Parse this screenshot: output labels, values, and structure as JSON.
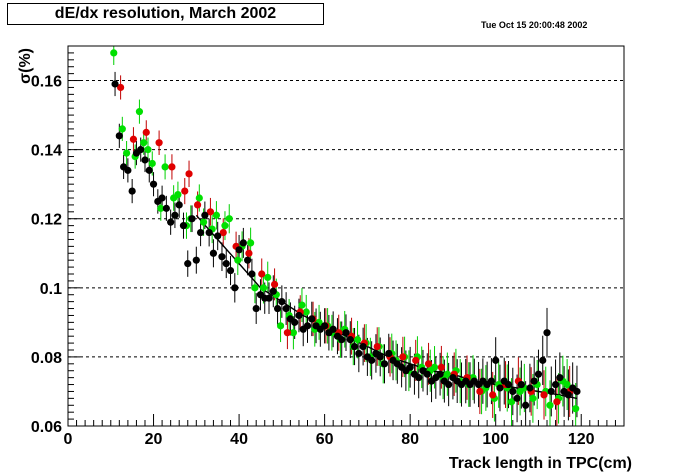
{
  "header": {
    "title": "dE/dx resolution, March 2002",
    "datestamp": "Tue Oct 15 20:00:48 2002"
  },
  "chart_data": {
    "type": "scatter",
    "title": "dE/dx resolution, March 2002",
    "xlabel": "Track length in TPC(cm)",
    "ylabel": "σ(%)",
    "xlim": [
      0,
      130
    ],
    "ylim": [
      0.06,
      0.17
    ],
    "xticks": [
      0,
      20,
      40,
      60,
      80,
      100,
      120
    ],
    "yticks": [
      0.06,
      0.08,
      0.1,
      0.12,
      0.14,
      0.16
    ],
    "ytick_labels": [
      "0.06",
      "0.08",
      "0.1",
      "0.12",
      "0.14",
      "0.16"
    ],
    "grid": "horizontal-dashed",
    "colors": {
      "black": "#000000",
      "red": "#e00000",
      "green": "#00e000",
      "error_red": "#c00000",
      "error_green": "#00d000"
    },
    "series": [
      {
        "color": "black",
        "x": [
          11,
          12,
          13,
          14,
          15,
          16,
          17,
          18,
          19,
          20,
          21,
          22,
          23,
          24,
          25,
          26,
          27,
          28,
          29,
          30,
          31,
          32,
          33,
          34,
          35,
          36,
          37,
          38,
          39,
          40,
          41,
          42,
          43,
          44,
          45,
          46,
          47,
          48,
          49,
          50,
          51,
          52,
          53,
          54,
          55,
          56,
          57,
          58,
          59,
          60,
          61,
          62,
          63,
          64,
          65,
          66,
          67,
          68,
          69,
          70,
          71,
          72,
          73,
          74,
          75,
          76,
          77,
          78,
          79,
          80,
          81,
          82,
          83,
          84,
          85,
          86,
          87,
          88,
          89,
          90,
          91,
          92,
          93,
          94,
          95,
          96,
          97,
          98,
          99,
          100,
          101,
          102,
          103,
          104,
          105,
          106,
          107,
          108,
          109,
          110,
          111,
          112,
          113,
          114,
          115,
          116,
          117,
          118,
          119
        ],
        "y": [
          0.159,
          0.144,
          0.135,
          0.134,
          0.128,
          0.139,
          0.14,
          0.137,
          0.134,
          0.13,
          0.125,
          0.126,
          0.123,
          0.119,
          0.121,
          0.124,
          0.118,
          0.107,
          0.12,
          0.108,
          0.116,
          0.121,
          0.116,
          0.11,
          0.115,
          0.109,
          0.107,
          0.105,
          0.1,
          0.111,
          0.113,
          0.108,
          0.104,
          0.094,
          0.098,
          0.097,
          0.097,
          0.099,
          0.094,
          0.096,
          0.094,
          0.091,
          0.09,
          0.092,
          0.088,
          0.089,
          0.091,
          0.089,
          0.088,
          0.089,
          0.087,
          0.088,
          0.086,
          0.085,
          0.087,
          0.085,
          0.083,
          0.081,
          0.083,
          0.08,
          0.079,
          0.081,
          0.08,
          0.078,
          0.081,
          0.079,
          0.078,
          0.077,
          0.076,
          0.077,
          0.075,
          0.074,
          0.076,
          0.075,
          0.073,
          0.074,
          0.075,
          0.073,
          0.072,
          0.074,
          0.073,
          0.072,
          0.073,
          0.072,
          0.073,
          0.072,
          0.073,
          0.072,
          0.073,
          0.079,
          0.071,
          0.073,
          0.072,
          0.07,
          0.068,
          0.072,
          0.066,
          0.071,
          0.073,
          0.075,
          0.079,
          0.087,
          0.07,
          0.072,
          0.074,
          0.07,
          0.069,
          0.071,
          0.07
        ]
      },
      {
        "color": "red",
        "x": [
          12,
          15,
          18,
          21,
          24,
          27,
          28,
          30,
          33,
          36,
          39,
          42,
          45,
          48,
          51,
          54,
          57,
          60,
          63,
          66,
          69,
          72,
          75,
          78,
          81,
          84,
          87,
          90,
          93,
          96,
          99,
          102,
          105,
          108,
          111,
          114,
          117
        ],
        "y": [
          0.158,
          0.143,
          0.145,
          0.142,
          0.135,
          0.128,
          0.133,
          0.124,
          0.122,
          0.116,
          0.112,
          0.11,
          0.104,
          0.101,
          0.087,
          0.093,
          0.091,
          0.089,
          0.087,
          0.086,
          0.084,
          0.083,
          0.08,
          0.08,
          0.079,
          0.078,
          0.077,
          0.075,
          0.074,
          0.07,
          0.069,
          0.072,
          0.073,
          0.07,
          0.069,
          0.067,
          0.07
        ]
      },
      {
        "color": "green",
        "x": [
          11,
          13,
          14,
          16,
          17,
          18,
          19,
          20,
          22,
          23,
          25,
          26,
          28,
          29,
          31,
          32,
          34,
          35,
          37,
          38,
          40,
          41,
          43,
          44,
          46,
          47,
          49,
          50,
          52,
          53,
          55,
          56,
          58,
          59,
          61,
          62,
          64,
          65,
          67,
          68,
          70,
          71,
          73,
          74,
          76,
          77,
          79,
          80,
          82,
          83,
          85,
          86,
          88,
          89,
          91,
          92,
          94,
          95,
          97,
          98,
          100,
          101,
          103,
          104,
          106,
          107,
          109,
          110,
          112,
          113,
          115,
          116,
          117,
          119
        ],
        "y": [
          0.168,
          0.146,
          0.139,
          0.138,
          0.151,
          0.142,
          0.14,
          0.136,
          0.123,
          0.135,
          0.126,
          0.127,
          0.118,
          0.12,
          0.126,
          0.119,
          0.117,
          0.121,
          0.118,
          0.12,
          0.108,
          0.112,
          0.113,
          0.1,
          0.1,
          0.103,
          0.098,
          0.089,
          0.092,
          0.087,
          0.095,
          0.093,
          0.088,
          0.09,
          0.089,
          0.087,
          0.085,
          0.088,
          0.083,
          0.085,
          0.084,
          0.08,
          0.083,
          0.078,
          0.081,
          0.079,
          0.08,
          0.076,
          0.08,
          0.077,
          0.076,
          0.077,
          0.074,
          0.075,
          0.076,
          0.073,
          0.072,
          0.074,
          0.07,
          0.071,
          0.068,
          0.072,
          0.071,
          0.067,
          0.07,
          0.071,
          0.068,
          0.072,
          0.07,
          0.066,
          0.068,
          0.073,
          0.072,
          0.065
        ]
      }
    ],
    "fit": {
      "x": [
        30,
        35,
        40,
        45,
        50,
        55,
        60,
        65,
        70,
        75,
        80,
        85,
        90,
        95,
        100,
        105,
        110,
        115,
        119
      ],
      "y": [
        0.121,
        0.114,
        0.107,
        0.1,
        0.096,
        0.092,
        0.089,
        0.086,
        0.083,
        0.08,
        0.078,
        0.076,
        0.075,
        0.073,
        0.072,
        0.071,
        0.07,
        0.069,
        0.068
      ]
    }
  }
}
